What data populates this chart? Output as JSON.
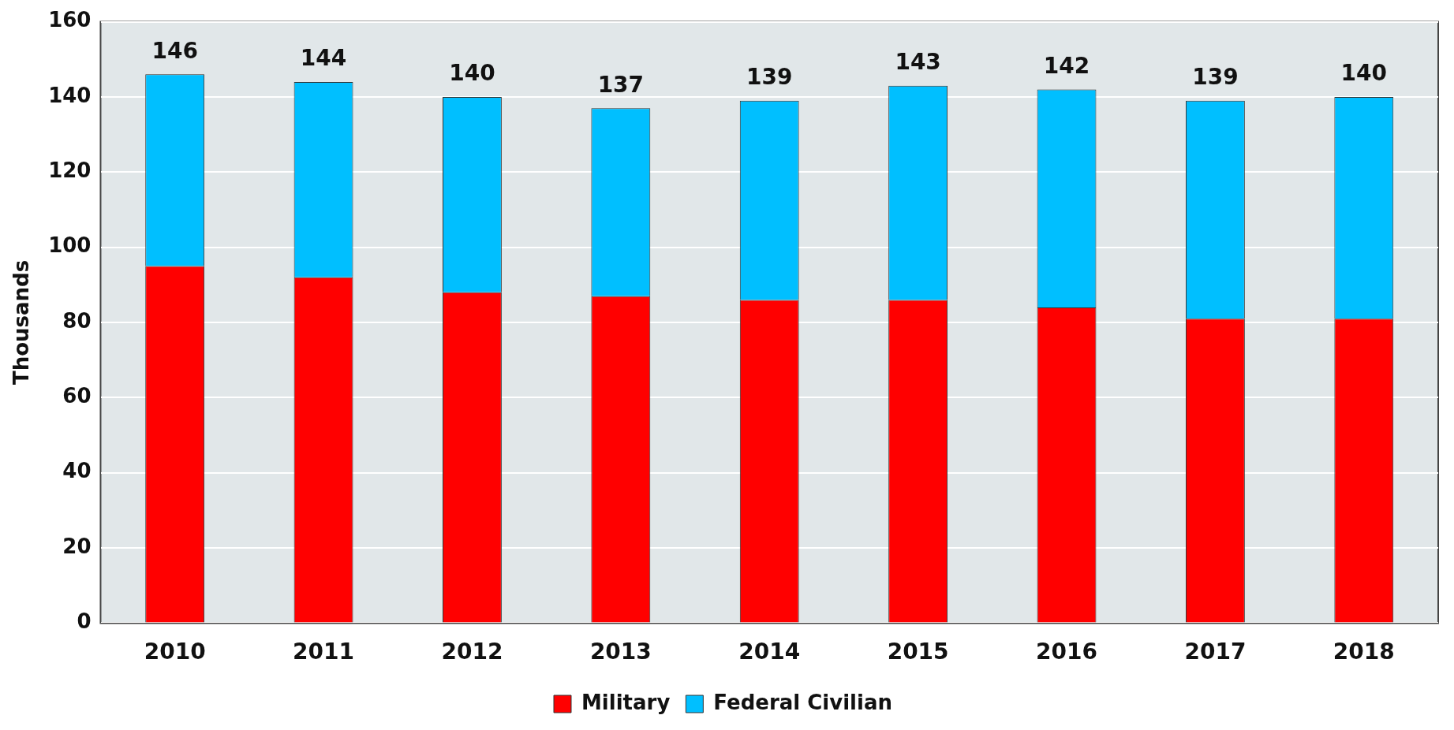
{
  "chart_data": {
    "type": "bar",
    "stacked": true,
    "ylabel": "Thousands",
    "categories": [
      "2010",
      "2011",
      "2012",
      "2013",
      "2014",
      "2015",
      "2016",
      "2017",
      "2018"
    ],
    "series": [
      {
        "name": "Military",
        "color": "#ff0000",
        "values": [
          95,
          92,
          88,
          87,
          86,
          86,
          84,
          81,
          81
        ]
      },
      {
        "name": "Federal Civilian",
        "color": "#00bfff",
        "values": [
          51,
          52,
          52,
          50,
          53,
          57,
          58,
          58,
          59
        ]
      }
    ],
    "totals": [
      "146",
      "144",
      "140",
      "137",
      "139",
      "143",
      "142",
      "139",
      "140"
    ],
    "ylim": [
      0,
      160
    ],
    "yticks": [
      0,
      20,
      40,
      60,
      80,
      100,
      120,
      140,
      160
    ],
    "grid": "y",
    "legend": "bottom"
  }
}
